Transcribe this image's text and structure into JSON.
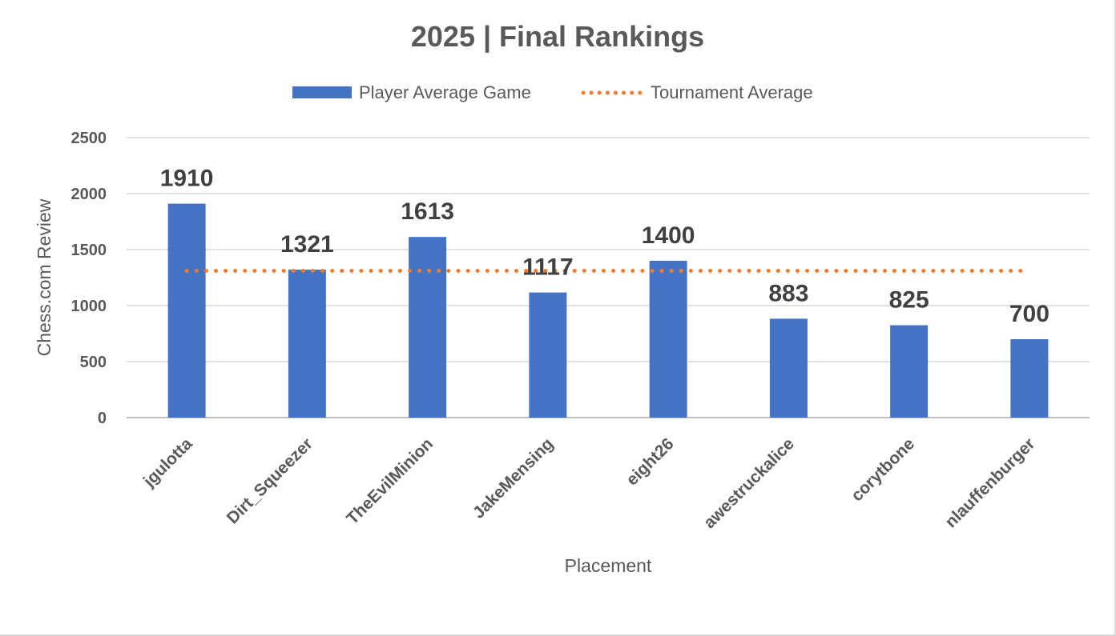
{
  "chart_data": {
    "type": "bar",
    "title": "2025 | Final Rankings",
    "xlabel": "Placement",
    "ylabel": "Chess.com Review",
    "ylim": [
      0,
      2500
    ],
    "yticks": [
      0,
      500,
      1000,
      1500,
      2000,
      2500
    ],
    "grid": true,
    "legend_position": "top",
    "categories": [
      "jgulotta",
      "Dirt_Squeezer",
      "TheEvilMinion",
      "JakeMensing",
      "eight26",
      "awestruckalice",
      "corytbone",
      "nlauffenburger"
    ],
    "series": [
      {
        "name": "Player Average Game",
        "type": "bar",
        "color": "#4472c4",
        "values": [
          1910,
          1321,
          1613,
          1117,
          1400,
          883,
          825,
          700
        ],
        "data_labels": [
          "1910",
          "1321",
          "1613",
          "1117",
          "1400",
          "883",
          "825",
          "700"
        ]
      },
      {
        "name": "Tournament Average",
        "type": "line",
        "style": "dotted",
        "color": "#ed7d31",
        "values": [
          1311,
          1311,
          1311,
          1311,
          1311,
          1311,
          1311,
          1311
        ]
      }
    ]
  }
}
